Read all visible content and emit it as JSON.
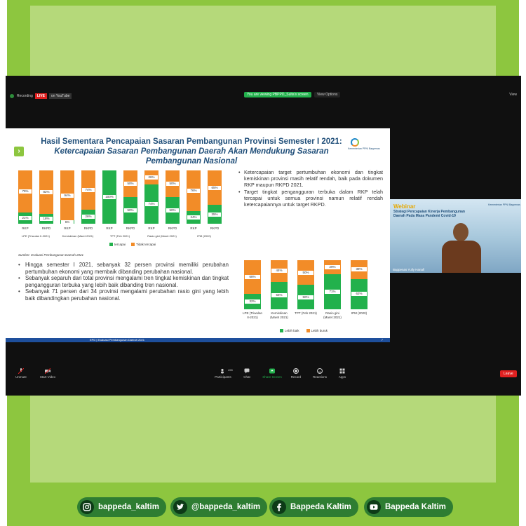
{
  "zoom": {
    "recording_label": "Recording",
    "live_badge": "LIVE",
    "youtube_label": "on YouTube",
    "viewing_notice": "You are viewing PBPPD_Sulta's screen",
    "view_options": "View Options",
    "view_label": "View"
  },
  "slide": {
    "title_line1": "Hasil Sementara Pencapaian Sasaran Pembangunan Provinsi Semester I 2021:",
    "title_line2": "Ketercapaian Sasaran Pembangunan Daerah Akan Mendukung Sasaran Pembangunan Nasional",
    "logo_text": "Kementerian PPN/ Bappenas",
    "source": "Sumber: Evaluasi Pembangunan Daerah 2021",
    "right_bullets": [
      "Ketercapaian target pertumbuhan ekonomi dan tingkat kemiskinan provinsi masih relatif rendah, baik pada dokumen RKP maupun RKPD 2021.",
      "Target tingkat pengangguran terbuka dalam RKP telah tercapai untuk semua provinsi namun relatif rendah ketercapaiannya untuk target RKPD."
    ],
    "left_bullets": [
      "Hingga semester I 2021, sebanyak 32 persen provinsi memiliki perubahan pertumbuhan ekonomi yang membaik dibanding perubahan nasional.",
      "Sebanyak separuh dari total provinsi mengalami tren tingkat kemiskinan dan tingkat pengangguran terbuka yang lebih baik dibanding tren nasional.",
      "Sebanyak 71 persen dari 34 provinsi mengalami perubahan rasio gini yang lebih baik dibandingkan perubahan nasional."
    ],
    "footer_text": "EPD | Evaluasi Pembangunan Daerah 2021",
    "page_num": "7"
  },
  "chart_data": [
    {
      "type": "bar",
      "stacked": true,
      "categories": [
        "RKP",
        "RKPD",
        "RKP",
        "RKPD",
        "RKP",
        "RKPD",
        "RKP",
        "RKPD",
        "RKP",
        "RKPD"
      ],
      "groups": [
        "LPE (Triwulan II-2021)",
        "Kemiskinan (Maret 2021)",
        "TPT (Feb 2021)",
        "Rasio gini (Maret 2021)",
        "IPM (2020)"
      ],
      "series": [
        {
          "name": "tercapai",
          "values": [
            21,
            18,
            6,
            26,
            100,
            50,
            74,
            50,
            24,
            35
          ],
          "labels": [
            "21%",
            "18%",
            "6%",
            "26%",
            "100%",
            "50%",
            "74%",
            "50%",
            "24%",
            "35%"
          ]
        },
        {
          "name": "Tidak tercapai",
          "values": [
            79,
            82,
            94,
            74,
            0,
            50,
            26,
            50,
            76,
            65
          ],
          "labels": [
            "79%",
            "82%",
            "94%",
            "74%",
            "",
            "50%",
            "26%",
            "50%",
            "76%",
            "65%"
          ]
        }
      ],
      "colors": {
        "tercapai": "#22b14c",
        "Tidak tercapai": "#f28c28"
      }
    },
    {
      "type": "bar",
      "stacked": true,
      "categories": [
        "LPE (Triwulan II-2021)",
        "Kemiskinan (Maret 2021)",
        "TPT (Feb 2021)",
        "Rasio gini (Maret 2021)",
        "IPM (2020)"
      ],
      "series": [
        {
          "name": "Lebih baik",
          "values": [
            32,
            56,
            50,
            71,
            62
          ],
          "labels": [
            "32%",
            "56%",
            "50%",
            "71%",
            "62%"
          ]
        },
        {
          "name": "Lebih buruk",
          "values": [
            68,
            44,
            50,
            29,
            38
          ],
          "labels": [
            "68%",
            "44%",
            "50%",
            "29%",
            "38%"
          ]
        }
      ],
      "colors": {
        "Lebih baik": "#22b14c",
        "Lebih buruk": "#f28c28"
      }
    }
  ],
  "camera": {
    "banner_title": "Webinar",
    "banner_sub": "Strategi Pencapaian Kinerja Pembangunan Daerah Pada Masa Pandemi Covid-19",
    "logo_text": "Kementerian PPN/ Bappenas",
    "name": "Bappenas Yully Hanafi"
  },
  "toolbar": {
    "unmute": "Unmute",
    "start_video": "Start Video",
    "participants": "Participants",
    "participants_count": "498",
    "chat": "Chat",
    "share_screen": "Share Screen",
    "record": "Record",
    "reactions": "Reactions",
    "apps": "Apps",
    "leave": "Leave"
  },
  "social": {
    "instagram": "bappeda_kaltim",
    "twitter": "@bappeda_kaltim",
    "facebook": "Bappeda Kaltim",
    "youtube": "Bappeda Kaltim"
  }
}
